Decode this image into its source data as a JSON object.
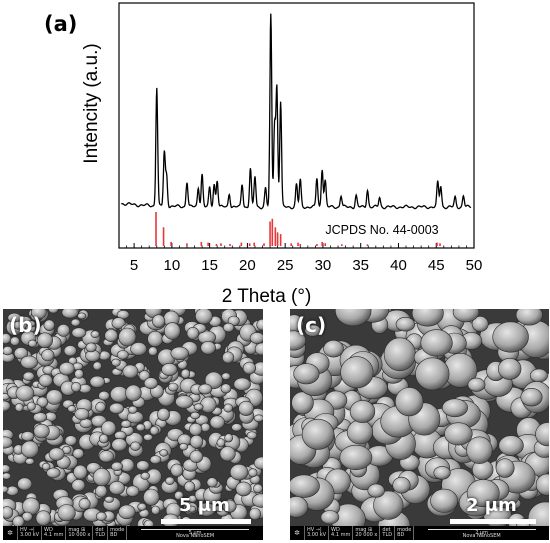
{
  "panel_a": {
    "label": "(a)",
    "chart_data": {
      "type": "line",
      "title": "",
      "xlabel": "2 Theta (°)",
      "ylabel": "Intencity (a.u.)",
      "xlim": [
        3,
        50
      ],
      "xticks": [
        5,
        10,
        15,
        20,
        25,
        30,
        35,
        40,
        45,
        50
      ],
      "grid": false,
      "reference_label": "JCPDS No. 44-0003",
      "colors": {
        "pattern": "#000000",
        "reference": "#e8363a"
      },
      "pattern_peaks": [
        {
          "x": 8.0,
          "y": 0.62
        },
        {
          "x": 9.0,
          "y": 0.28
        },
        {
          "x": 9.3,
          "y": 0.16
        },
        {
          "x": 12.0,
          "y": 0.13
        },
        {
          "x": 13.5,
          "y": 0.1
        },
        {
          "x": 14.0,
          "y": 0.17
        },
        {
          "x": 15.0,
          "y": 0.1
        },
        {
          "x": 15.6,
          "y": 0.12
        },
        {
          "x": 16.0,
          "y": 0.14
        },
        {
          "x": 17.6,
          "y": 0.07
        },
        {
          "x": 19.3,
          "y": 0.12
        },
        {
          "x": 20.4,
          "y": 0.2
        },
        {
          "x": 21.0,
          "y": 0.16
        },
        {
          "x": 22.4,
          "y": 0.1
        },
        {
          "x": 23.1,
          "y": 1.0
        },
        {
          "x": 23.6,
          "y": 0.43
        },
        {
          "x": 23.9,
          "y": 0.62
        },
        {
          "x": 24.4,
          "y": 0.55
        },
        {
          "x": 26.5,
          "y": 0.12
        },
        {
          "x": 27.0,
          "y": 0.14
        },
        {
          "x": 29.2,
          "y": 0.15
        },
        {
          "x": 29.9,
          "y": 0.2
        },
        {
          "x": 30.3,
          "y": 0.14
        },
        {
          "x": 32.4,
          "y": 0.06
        },
        {
          "x": 34.4,
          "y": 0.06
        },
        {
          "x": 35.9,
          "y": 0.09
        },
        {
          "x": 37.5,
          "y": 0.05
        },
        {
          "x": 45.2,
          "y": 0.13
        },
        {
          "x": 45.6,
          "y": 0.11
        },
        {
          "x": 47.5,
          "y": 0.05
        },
        {
          "x": 48.6,
          "y": 0.06
        }
      ],
      "reference_lines": [
        {
          "x": 7.9,
          "y": 1.0
        },
        {
          "x": 8.9,
          "y": 0.55
        },
        {
          "x": 9.9,
          "y": 0.12
        },
        {
          "x": 12.0,
          "y": 0.08
        },
        {
          "x": 13.9,
          "y": 0.12
        },
        {
          "x": 14.8,
          "y": 0.1
        },
        {
          "x": 15.9,
          "y": 0.06
        },
        {
          "x": 16.5,
          "y": 0.08
        },
        {
          "x": 17.7,
          "y": 0.06
        },
        {
          "x": 19.2,
          "y": 0.1
        },
        {
          "x": 20.3,
          "y": 0.08
        },
        {
          "x": 20.9,
          "y": 0.1
        },
        {
          "x": 22.2,
          "y": 0.08
        },
        {
          "x": 23.0,
          "y": 0.72
        },
        {
          "x": 23.3,
          "y": 0.8
        },
        {
          "x": 23.7,
          "y": 0.55
        },
        {
          "x": 24.0,
          "y": 0.4
        },
        {
          "x": 24.4,
          "y": 0.35
        },
        {
          "x": 25.8,
          "y": 0.08
        },
        {
          "x": 26.7,
          "y": 0.1
        },
        {
          "x": 27.0,
          "y": 0.06
        },
        {
          "x": 29.2,
          "y": 0.06
        },
        {
          "x": 29.9,
          "y": 0.12
        },
        {
          "x": 30.3,
          "y": 0.08
        },
        {
          "x": 32.5,
          "y": 0.05
        },
        {
          "x": 35.9,
          "y": 0.05
        },
        {
          "x": 45.1,
          "y": 0.1
        },
        {
          "x": 45.5,
          "y": 0.08
        }
      ]
    }
  },
  "panel_b": {
    "label": "(b)",
    "scale_label": "5 μm",
    "info_bar": {
      "hv": [
        "HV →|",
        "3.00 kV"
      ],
      "wd": [
        "WD",
        "4.1 mm"
      ],
      "mag": [
        "mag ⊞",
        "10 000 x"
      ],
      "det": [
        "det",
        "TLD"
      ],
      "mode": [
        "mode",
        "BD"
      ],
      "scale": "5 μm",
      "instrument": "Nova NanoSEM"
    }
  },
  "panel_c": {
    "label": "(c)",
    "scale_label": "2 μm",
    "info_bar": {
      "hv": [
        "HV →|",
        "3.00 kV"
      ],
      "wd": [
        "WD",
        "4.1 mm"
      ],
      "mag": [
        "mag ⊞",
        "20 000 x"
      ],
      "det": [
        "det",
        "TLD"
      ],
      "mode": [
        "mode",
        "BD"
      ],
      "scale": "2 μm",
      "instrument": "Nova NanoSEM"
    }
  }
}
